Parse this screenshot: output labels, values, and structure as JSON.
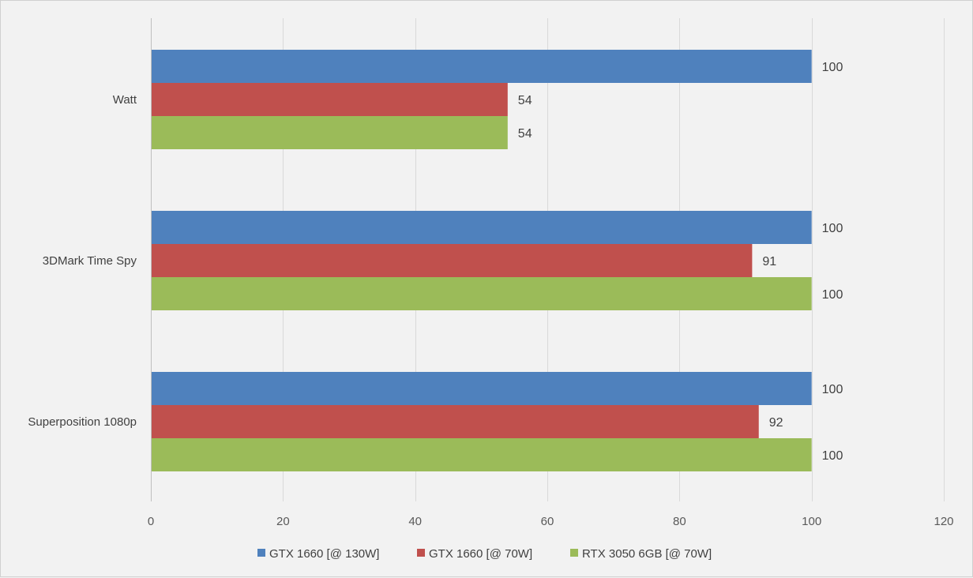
{
  "chart_data": {
    "type": "bar",
    "orientation": "horizontal",
    "categories": [
      "Watt",
      "3DMark Time Spy",
      "Superposition 1080p"
    ],
    "series": [
      {
        "name": "GTX 1660 [@ 130W]",
        "color": "#4f81bd",
        "values": [
          100,
          100,
          100
        ]
      },
      {
        "name": "GTX 1660 [@ 70W]",
        "color": "#c0504d",
        "values": [
          54,
          91,
          92
        ]
      },
      {
        "name": "RTX 3050 6GB [@ 70W]",
        "color": "#9bbb59",
        "values": [
          54,
          100,
          100
        ]
      }
    ],
    "xlim": [
      0,
      120
    ],
    "xticks": [
      0,
      20,
      40,
      60,
      80,
      100,
      120
    ],
    "title": "",
    "xlabel": "",
    "ylabel": "",
    "grid": true,
    "legend_position": "bottom",
    "data_labels": true
  }
}
